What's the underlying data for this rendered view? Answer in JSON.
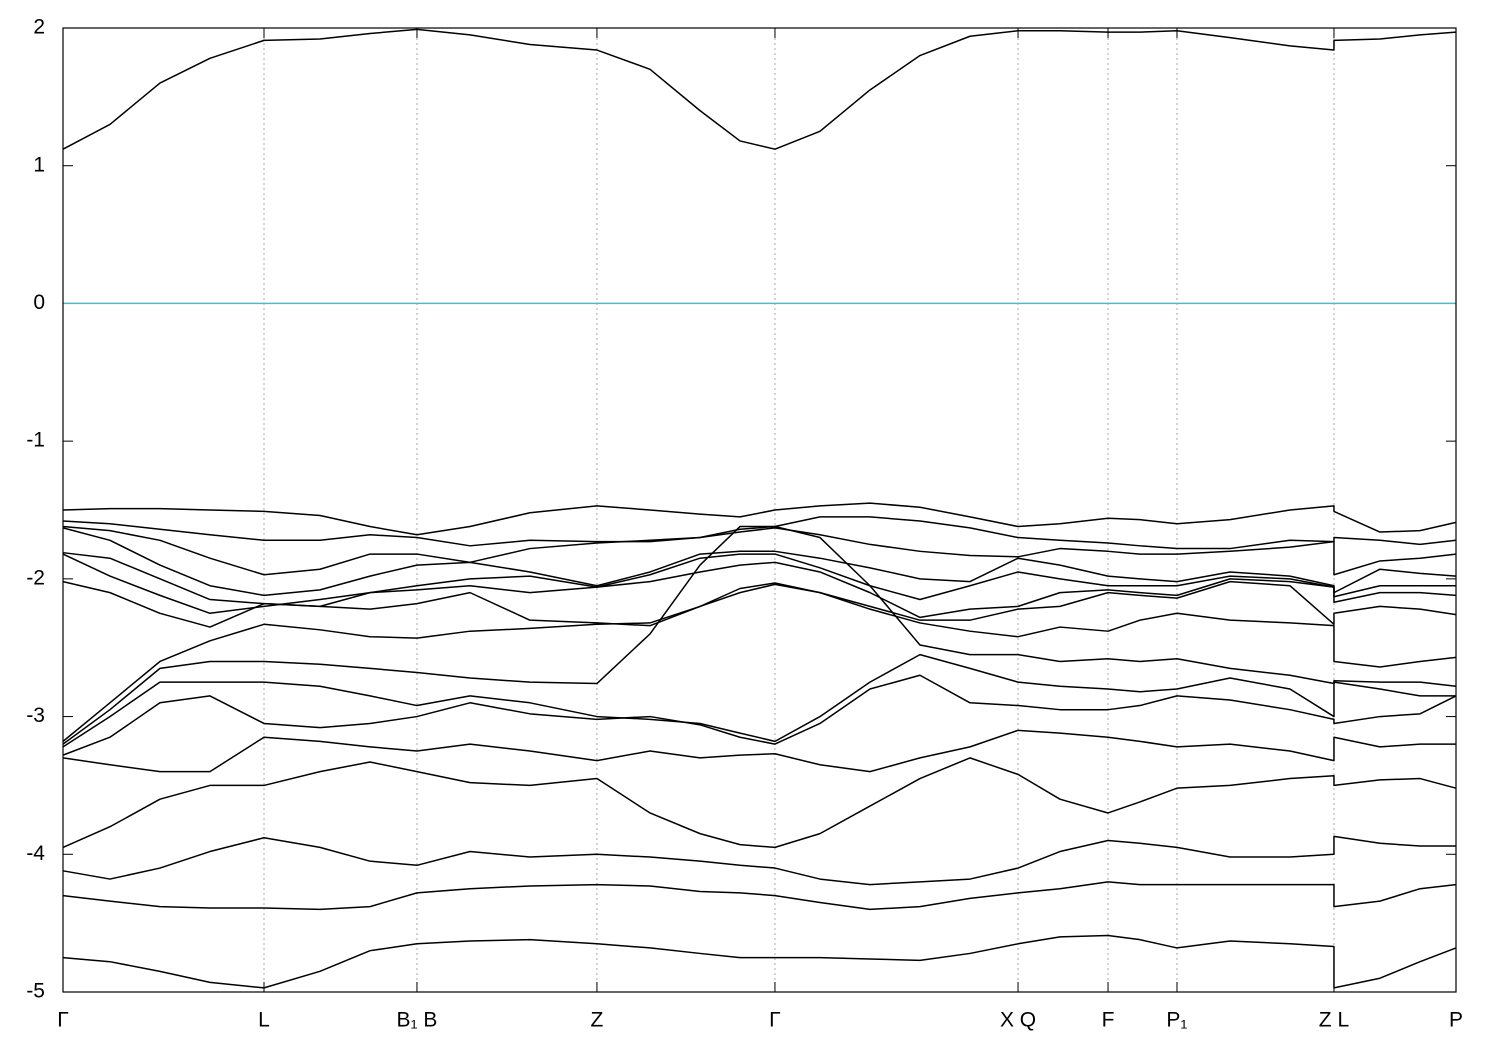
{
  "chart_data": {
    "type": "line",
    "color": "#000000",
    "x": [
      0,
      0.0337,
      0.0696,
      0.1055,
      0.1443,
      0.1845,
      0.2204,
      0.2541,
      0.2922,
      0.3352,
      0.3833,
      0.4214,
      0.4573,
      0.486,
      0.5111,
      0.5434,
      0.5793,
      0.6152,
      0.6511,
      0.6856,
      0.7157,
      0.7502,
      0.7731,
      0.7997,
      0.8378,
      0.8808,
      0.9124,
      0.9124,
      0.9454,
      0.9742,
      1
    ],
    "xlim": [
      0,
      1
    ],
    "xticks": [
      {
        "value": 0,
        "label": "Γ"
      },
      {
        "value": 0.1443,
        "label": "L"
      },
      {
        "value": 0.2541,
        "label": "B₁ B"
      },
      {
        "value": 0.3833,
        "label": "Z"
      },
      {
        "value": 0.5111,
        "label": "Γ"
      },
      {
        "value": 0.6856,
        "label": "X Q"
      },
      {
        "value": 0.7502,
        "label": "F"
      },
      {
        "value": 0.7997,
        "label": "P₁"
      },
      {
        "value": 0.9124,
        "label": "Z L"
      },
      {
        "value": 1,
        "label": "P"
      }
    ],
    "xgrid": true,
    "ylim": [
      -5,
      2
    ],
    "yticks": [
      -5,
      -4,
      -3,
      -2,
      -1,
      0,
      1,
      2
    ],
    "reference_line": {
      "value": 0,
      "color": "#5ab4c8"
    },
    "series": [
      {
        "values": [
          1.12,
          1.3,
          1.6,
          1.78,
          1.91,
          1.92,
          1.96,
          1.99,
          1.95,
          1.88,
          1.84,
          1.7,
          1.4,
          1.18,
          1.12,
          1.25,
          1.55,
          1.8,
          1.94,
          1.98,
          1.98,
          1.97,
          1.97,
          1.98,
          1.93,
          1.87,
          1.84,
          1.91,
          1.92,
          1.95,
          1.97
        ]
      },
      {
        "values": [
          -1.5,
          -1.49,
          -1.49,
          -1.5,
          -1.51,
          -1.54,
          -1.62,
          -1.68,
          -1.62,
          -1.52,
          -1.47,
          -1.5,
          -1.53,
          -1.55,
          -1.5,
          -1.47,
          -1.45,
          -1.48,
          -1.55,
          -1.62,
          -1.6,
          -1.56,
          -1.57,
          -1.6,
          -1.57,
          -1.5,
          -1.47,
          -1.51,
          -1.66,
          -1.65,
          -1.59
        ]
      },
      {
        "values": [
          -1.58,
          -1.6,
          -1.64,
          -1.68,
          -1.72,
          -1.72,
          -1.68,
          -1.7,
          -1.76,
          -1.72,
          -1.73,
          -1.73,
          -1.7,
          -1.64,
          -1.62,
          -1.55,
          -1.55,
          -1.58,
          -1.63,
          -1.7,
          -1.72,
          -1.74,
          -1.76,
          -1.78,
          -1.78,
          -1.72,
          -1.73,
          -1.7,
          -1.72,
          -1.75,
          -1.72
        ]
      },
      {
        "values": [
          -1.62,
          -1.65,
          -1.72,
          -1.85,
          -1.97,
          -1.93,
          -1.82,
          -1.82,
          -1.88,
          -1.78,
          -1.74,
          -1.72,
          -1.7,
          -1.66,
          -1.63,
          -1.68,
          -1.75,
          -1.8,
          -1.83,
          -1.84,
          -1.78,
          -1.8,
          -1.82,
          -1.82,
          -1.8,
          -1.77,
          -1.73,
          -1.97,
          -1.87,
          -1.85,
          -1.82
        ]
      },
      {
        "values": [
          -1.63,
          -1.72,
          -1.9,
          -2.05,
          -2.12,
          -2.08,
          -1.98,
          -1.9,
          -1.88,
          -1.95,
          -2.05,
          -1.95,
          -1.82,
          -1.8,
          -1.8,
          -1.85,
          -1.92,
          -2.0,
          -2.02,
          -1.85,
          -1.9,
          -1.98,
          -2.0,
          -2.02,
          -1.95,
          -1.98,
          -2.05,
          -2.1,
          -1.93,
          -1.96,
          -1.98
        ]
      },
      {
        "values": [
          -1.81,
          -1.85,
          -2.0,
          -2.15,
          -2.18,
          -2.2,
          -2.1,
          -2.05,
          -2.0,
          -1.98,
          -2.06,
          -1.97,
          -1.85,
          -1.82,
          -1.82,
          -1.92,
          -2.05,
          -2.15,
          -2.05,
          -1.95,
          -2.0,
          -2.05,
          -2.05,
          -2.05,
          -1.98,
          -2.0,
          -2.06,
          -2.13,
          -2.05,
          -2.05,
          -2.05
        ]
      },
      {
        "values": [
          -1.82,
          -1.98,
          -2.12,
          -2.25,
          -2.2,
          -2.15,
          -2.1,
          -2.08,
          -2.05,
          -2.1,
          -2.06,
          -2.02,
          -1.95,
          -1.9,
          -1.88,
          -1.95,
          -2.1,
          -2.28,
          -2.22,
          -2.2,
          -2.1,
          -2.08,
          -2.1,
          -2.12,
          -2.0,
          -2.02,
          -2.06,
          -2.17,
          -2.1,
          -2.1,
          -2.12
        ]
      },
      {
        "values": [
          -2.02,
          -2.1,
          -2.25,
          -2.35,
          -2.18,
          -2.2,
          -2.22,
          -2.18,
          -2.1,
          -2.3,
          -2.32,
          -2.34,
          -2.2,
          -2.07,
          -2.03,
          -2.1,
          -2.2,
          -2.3,
          -2.3,
          -2.22,
          -2.2,
          -2.1,
          -2.12,
          -2.14,
          -2.02,
          -2.05,
          -2.33,
          -2.25,
          -2.2,
          -2.22,
          -2.26
        ]
      },
      {
        "values": [
          -3.18,
          -2.9,
          -2.6,
          -2.45,
          -2.33,
          -2.37,
          -2.42,
          -2.43,
          -2.38,
          -2.36,
          -2.33,
          -2.32,
          -2.2,
          -2.1,
          -2.04,
          -2.1,
          -2.22,
          -2.32,
          -2.38,
          -2.42,
          -2.35,
          -2.38,
          -2.3,
          -2.25,
          -2.3,
          -2.32,
          -2.34,
          -2.6,
          -2.64,
          -2.6,
          -2.57
        ]
      },
      {
        "values": [
          -3.2,
          -2.95,
          -2.65,
          -2.6,
          -2.6,
          -2.62,
          -2.65,
          -2.68,
          -2.72,
          -2.75,
          -2.76,
          -2.4,
          -1.9,
          -1.62,
          -1.62,
          -1.7,
          -2.05,
          -2.48,
          -2.55,
          -2.55,
          -2.6,
          -2.58,
          -2.6,
          -2.58,
          -2.65,
          -2.7,
          -2.76,
          -2.74,
          -2.75,
          -2.75,
          -2.78
        ]
      },
      {
        "values": [
          -3.22,
          -3.0,
          -2.75,
          -2.75,
          -2.75,
          -2.78,
          -2.85,
          -2.92,
          -2.85,
          -2.9,
          -3.0,
          -3.02,
          -3.05,
          -3.12,
          -3.18,
          -3.0,
          -2.75,
          -2.55,
          -2.65,
          -2.75,
          -2.78,
          -2.8,
          -2.82,
          -2.8,
          -2.72,
          -2.8,
          -3.0,
          -2.75,
          -2.8,
          -2.85,
          -2.85
        ]
      },
      {
        "values": [
          -3.28,
          -3.15,
          -2.9,
          -2.85,
          -3.05,
          -3.08,
          -3.05,
          -3.0,
          -2.9,
          -2.98,
          -3.02,
          -3.0,
          -3.06,
          -3.15,
          -3.2,
          -3.05,
          -2.8,
          -2.7,
          -2.9,
          -2.92,
          -2.95,
          -2.95,
          -2.92,
          -2.85,
          -2.88,
          -2.95,
          -3.02,
          -3.05,
          -3.0,
          -2.98,
          -2.85
        ]
      },
      {
        "values": [
          -3.3,
          -3.35,
          -3.4,
          -3.4,
          -3.15,
          -3.18,
          -3.22,
          -3.25,
          -3.2,
          -3.25,
          -3.32,
          -3.25,
          -3.3,
          -3.28,
          -3.27,
          -3.35,
          -3.4,
          -3.3,
          -3.22,
          -3.1,
          -3.12,
          -3.15,
          -3.18,
          -3.22,
          -3.2,
          -3.25,
          -3.32,
          -3.15,
          -3.22,
          -3.2,
          -3.2
        ]
      },
      {
        "values": [
          -3.95,
          -3.8,
          -3.6,
          -3.5,
          -3.5,
          -3.4,
          -3.33,
          -3.4,
          -3.48,
          -3.5,
          -3.45,
          -3.7,
          -3.85,
          -3.93,
          -3.95,
          -3.85,
          -3.65,
          -3.45,
          -3.3,
          -3.42,
          -3.6,
          -3.7,
          -3.62,
          -3.52,
          -3.5,
          -3.45,
          -3.43,
          -3.5,
          -3.46,
          -3.45,
          -3.52
        ]
      },
      {
        "values": [
          -4.12,
          -4.18,
          -4.1,
          -3.98,
          -3.88,
          -3.95,
          -4.05,
          -4.08,
          -3.98,
          -4.02,
          -4.0,
          -4.02,
          -4.05,
          -4.08,
          -4.1,
          -4.18,
          -4.22,
          -4.2,
          -4.18,
          -4.1,
          -3.98,
          -3.9,
          -3.92,
          -3.95,
          -4.02,
          -4.02,
          -4.0,
          -3.87,
          -3.92,
          -3.94,
          -3.94
        ]
      },
      {
        "values": [
          -4.3,
          -4.34,
          -4.38,
          -4.39,
          -4.39,
          -4.4,
          -4.38,
          -4.28,
          -4.25,
          -4.23,
          -4.22,
          -4.23,
          -4.27,
          -4.28,
          -4.3,
          -4.35,
          -4.4,
          -4.38,
          -4.32,
          -4.28,
          -4.25,
          -4.2,
          -4.22,
          -4.22,
          -4.22,
          -4.22,
          -4.22,
          -4.38,
          -4.34,
          -4.25,
          -4.22
        ]
      },
      {
        "values": [
          -4.75,
          -4.78,
          -4.85,
          -4.93,
          -4.97,
          -4.85,
          -4.7,
          -4.65,
          -4.63,
          -4.62,
          -4.65,
          -4.68,
          -4.72,
          -4.75,
          -4.75,
          -4.75,
          -4.76,
          -4.77,
          -4.72,
          -4.65,
          -4.6,
          -4.59,
          -4.62,
          -4.68,
          -4.63,
          -4.65,
          -4.67,
          -4.97,
          -4.9,
          -4.78,
          -4.68
        ]
      }
    ]
  }
}
